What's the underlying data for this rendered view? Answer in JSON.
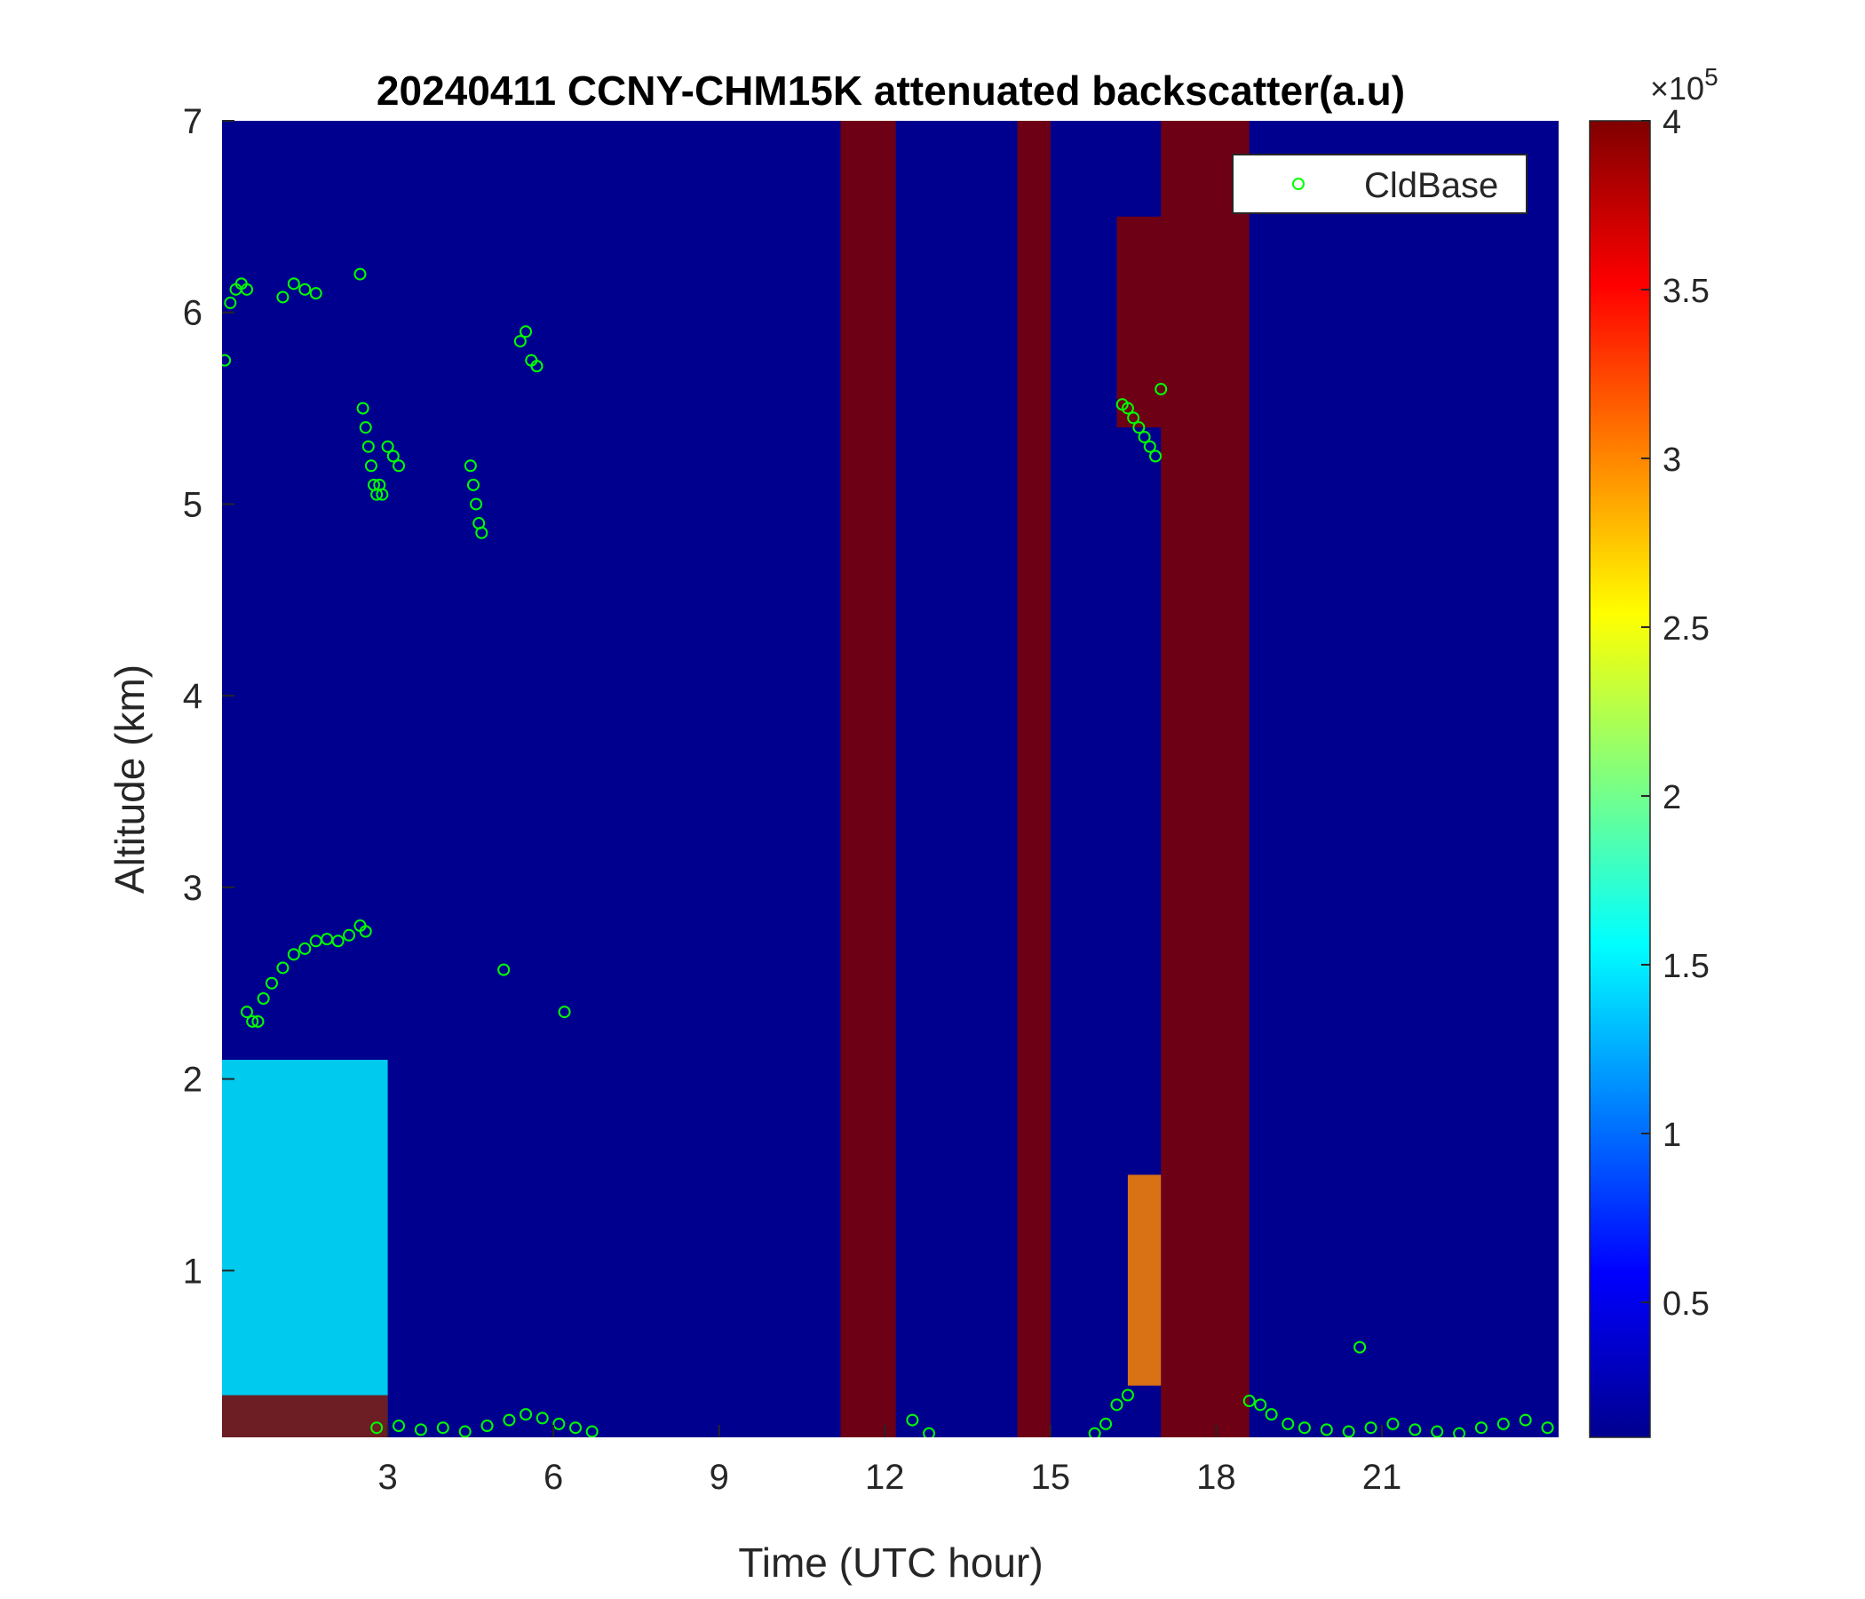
{
  "chart_data": {
    "type": "heatmap",
    "title": "20240411 CCNY-CHM15K attenuated backscatter(a.u)",
    "xlabel": "Time (UTC hour)",
    "ylabel": "Altitude (km)",
    "xlim": [
      0,
      24.2
    ],
    "ylim": [
      0.13,
      7
    ],
    "x_ticks": [
      3,
      6,
      9,
      12,
      15,
      18,
      21
    ],
    "x_tick_labels": [
      "3",
      "6",
      "9",
      "12",
      "15",
      "18",
      "21"
    ],
    "y_ticks": [
      1,
      2,
      3,
      4,
      5,
      6,
      7
    ],
    "y_tick_labels": [
      "1",
      "2",
      "3",
      "4",
      "5",
      "6",
      "7"
    ],
    "colorbar": {
      "colormap": "jet",
      "clim": [
        10000,
        400000
      ],
      "ticks": [
        50000,
        100000,
        150000,
        200000,
        250000,
        300000,
        350000,
        400000
      ],
      "tick_labels": [
        "0.5",
        "1",
        "1.5",
        "2",
        "2.5",
        "3",
        "3.5",
        "4"
      ],
      "exponent_label": "×10",
      "exponent_power": "5"
    },
    "legend": {
      "placement": "top-right",
      "entries": [
        "CldBase"
      ]
    },
    "series": [
      {
        "name": "CldBase",
        "marker": "circle",
        "color": "#00ff00",
        "x": [
          0.05,
          0.15,
          0.25,
          0.35,
          0.45,
          1.1,
          1.3,
          1.5,
          1.7,
          2.5,
          2.55,
          2.6,
          2.65,
          2.7,
          2.75,
          2.8,
          2.85,
          2.9,
          3.0,
          3.1,
          3.2,
          4.5,
          4.55,
          4.6,
          4.65,
          4.7,
          5.4,
          5.5,
          5.6,
          5.7,
          16.3,
          16.4,
          16.5,
          16.6,
          16.7,
          16.8,
          16.9,
          17.0,
          0.45,
          0.55,
          0.65,
          0.75,
          0.9,
          1.1,
          1.3,
          1.5,
          1.7,
          1.9,
          2.1,
          2.3,
          2.5,
          2.6,
          5.1,
          6.2,
          2.8,
          3.2,
          3.6,
          4.0,
          4.4,
          4.8,
          5.2,
          5.5,
          5.8,
          6.1,
          6.4,
          6.7,
          12.5,
          12.8,
          15.8,
          16.0,
          16.2,
          16.4,
          18.6,
          18.8,
          19.0,
          19.3,
          19.6,
          20.0,
          20.4,
          20.8,
          21.2,
          21.6,
          22.0,
          22.4,
          22.8,
          23.2,
          23.6,
          24.0,
          20.6
        ],
        "y": [
          5.75,
          6.05,
          6.12,
          6.15,
          6.12,
          6.08,
          6.15,
          6.12,
          6.1,
          6.2,
          5.5,
          5.4,
          5.3,
          5.2,
          5.1,
          5.05,
          5.1,
          5.05,
          5.3,
          5.25,
          5.2,
          5.2,
          5.1,
          5.0,
          4.9,
          4.85,
          5.85,
          5.9,
          5.75,
          5.72,
          5.52,
          5.5,
          5.45,
          5.4,
          5.35,
          5.3,
          5.25,
          5.6,
          2.35,
          2.3,
          2.3,
          2.42,
          2.5,
          2.58,
          2.65,
          2.68,
          2.72,
          2.73,
          2.72,
          2.75,
          2.8,
          2.77,
          2.57,
          2.35,
          0.18,
          0.19,
          0.17,
          0.18,
          0.16,
          0.19,
          0.22,
          0.25,
          0.23,
          0.2,
          0.18,
          0.16,
          0.22,
          0.15,
          0.15,
          0.2,
          0.3,
          0.35,
          0.32,
          0.3,
          0.25,
          0.2,
          0.18,
          0.17,
          0.16,
          0.18,
          0.2,
          0.17,
          0.16,
          0.15,
          0.18,
          0.2,
          0.22,
          0.18,
          0.6
        ]
      }
    ],
    "features": [
      {
        "x": [
          0,
          3
        ],
        "y": [
          0.13,
          2.1
        ],
        "level": 150000
      },
      {
        "x": [
          0,
          3
        ],
        "y": [
          0.13,
          0.35
        ],
        "level": 400000
      },
      {
        "x": [
          11.2,
          12.2
        ],
        "y": [
          0.13,
          7
        ],
        "level": 400000
      },
      {
        "x": [
          14.4,
          15.0
        ],
        "y": [
          0.13,
          7
        ],
        "level": 400000
      },
      {
        "x": [
          17.0,
          18.6
        ],
        "y": [
          0.13,
          7
        ],
        "level": 400000
      },
      {
        "x": [
          16.2,
          17.0
        ],
        "y": [
          5.4,
          6.5
        ],
        "level": 400000
      },
      {
        "x": [
          16.4,
          17.0
        ],
        "y": [
          0.4,
          1.5
        ],
        "level": 300000
      }
    ]
  }
}
